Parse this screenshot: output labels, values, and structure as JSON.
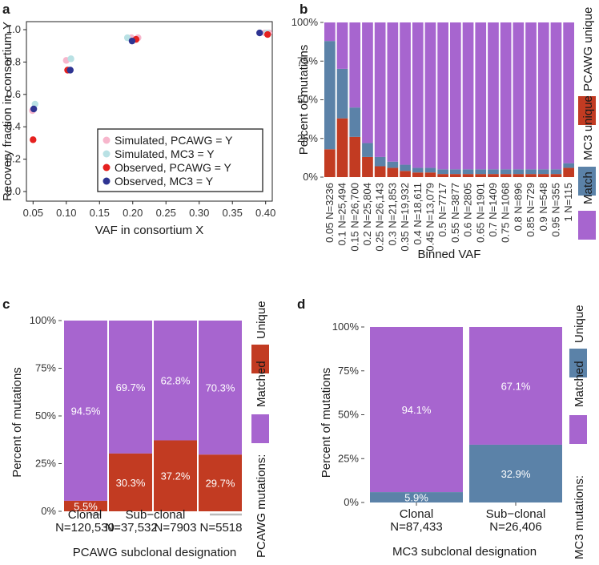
{
  "colors": {
    "purple": "#a765cf",
    "red": "#c23b22",
    "blue": "#5b82a8",
    "sim_pcawg": "#f7b6cc",
    "sim_mc3": "#b9e1e4",
    "obs_pcawg": "#e5211f",
    "obs_mc3": "#2e3492",
    "grid": "#e6e6e6"
  },
  "chart_data": [
    {
      "panel": "a",
      "type": "scatter",
      "xlabel": "VAF in consortium X",
      "ylabel": "Recovery fraction in consortium Y",
      "xlim": [
        0.04,
        0.41
      ],
      "ylim": [
        0.0,
        1.0
      ],
      "xticks": [
        "0.05",
        "0.10",
        "0.15",
        "0.20",
        "0.25",
        "0.30",
        "0.35",
        "0.40"
      ],
      "yticks": [
        "0.0",
        "0.2",
        "0.4",
        "0.6",
        "0.8",
        "1.0"
      ],
      "legend": [
        "Simulated, PCAWG = Y",
        "Simulated, MC3 = Y",
        "Observed, PCAWG = Y",
        "Observed, MC3 = Y"
      ],
      "series": [
        {
          "name": "Simulated, PCAWG = Y",
          "color_key": "sim_pcawg",
          "points": [
            [
              0.049,
              0.5
            ],
            [
              0.1,
              0.81
            ],
            [
              0.198,
              0.95
            ],
            [
              0.208,
              0.95
            ],
            [
              0.399,
              0.98
            ],
            [
              0.405,
              0.98
            ]
          ]
        },
        {
          "name": "Simulated, MC3 = Y",
          "color_key": "sim_mc3",
          "points": [
            [
              0.053,
              0.54
            ],
            [
              0.107,
              0.82
            ],
            [
              0.192,
              0.95
            ],
            [
              0.402,
              0.98
            ]
          ]
        },
        {
          "name": "Observed, PCAWG = Y",
          "color_key": "obs_pcawg",
          "points": [
            [
              0.05,
              0.32
            ],
            [
              0.102,
              0.75
            ],
            [
              0.205,
              0.94
            ],
            [
              0.403,
              0.97
            ]
          ]
        },
        {
          "name": "Observed, MC3 = Y",
          "color_key": "obs_mc3",
          "points": [
            [
              0.051,
              0.51
            ],
            [
              0.106,
              0.75
            ],
            [
              0.199,
              0.93
            ],
            [
              0.391,
              0.98
            ]
          ]
        }
      ]
    },
    {
      "panel": "b",
      "type": "bar",
      "stacked": true,
      "xlabel": "Binned VAF",
      "ylabel": "Percent of mutations",
      "yticks": [
        "0%",
        "25%",
        "50%",
        "75%",
        "100%"
      ],
      "categories": [
        "0.05 N=3236",
        "0.1 N=25,494",
        "0.15 N=26,700",
        "0.2 N=25,804",
        "0.25 N=26,143",
        "0.3 N=21,853",
        "0.35 N=19,932",
        "0.4 N=18,611",
        "0.45 N=13,079",
        "0.5 N=7717",
        "0.55 N=3877",
        "0.6 N=2805",
        "0.65 N=1901",
        "0.7 N=1409",
        "0.75 N=1068",
        "0.8 N=896",
        "0.85 N=729",
        "0.9 N=548",
        "0.95 N=355",
        "1 N=115"
      ],
      "series": [
        {
          "name": "PCAWG unique",
          "color_key": "red",
          "values": [
            18,
            38,
            26,
            13,
            7,
            6,
            4,
            3,
            3,
            2,
            2,
            2,
            2,
            2,
            2,
            2,
            2,
            2,
            2,
            6
          ]
        },
        {
          "name": "MC3 unique",
          "color_key": "blue",
          "values": [
            70,
            32,
            19,
            9,
            6,
            4,
            4,
            3,
            3,
            3,
            3,
            3,
            3,
            3,
            3,
            3,
            3,
            3,
            3,
            3
          ]
        },
        {
          "name": "Match",
          "color_key": "purple",
          "values": [
            12,
            30,
            55,
            78,
            87,
            90,
            92,
            94,
            94,
            95,
            95,
            95,
            95,
            95,
            95,
            95,
            95,
            95,
            95,
            91
          ]
        }
      ],
      "legend": [
        "PCAWG unique",
        "MC3 unique",
        "Match"
      ]
    },
    {
      "panel": "c",
      "type": "bar",
      "stacked": true,
      "xlabel": "PCAWG subclonal designation",
      "ylabel": "Percent of mutations",
      "yticks": [
        "0%",
        "25%",
        "50%",
        "75%",
        "100%"
      ],
      "categories": [
        "Clonal",
        "Sub−clonal",
        "",
        ""
      ],
      "counts": [
        "N=120,530",
        "N=37,532",
        "N=7903",
        "N=5518"
      ],
      "series": [
        {
          "name": "Unique",
          "color_key": "red",
          "values": [
            5.5,
            30.3,
            37.2,
            29.7
          ],
          "labels": [
            "5.5%",
            "30.3%",
            "37.2%",
            "29.7%"
          ]
        },
        {
          "name": "Matched",
          "color_key": "purple",
          "values": [
            94.5,
            69.7,
            62.8,
            70.3
          ],
          "labels": [
            "94.5%",
            "69.7%",
            "62.8%",
            "70.3%"
          ]
        }
      ],
      "legend_title": "PCAWG mutations:",
      "legend": [
        "Unique",
        "Matched"
      ]
    },
    {
      "panel": "d",
      "type": "bar",
      "stacked": true,
      "xlabel": "MC3 subclonal designation",
      "ylabel": "Percent of mutations",
      "yticks": [
        "0%",
        "25%",
        "50%",
        "75%",
        "100%"
      ],
      "categories": [
        "Clonal",
        "Sub−clonal"
      ],
      "counts": [
        "N=87,433",
        "N=26,406"
      ],
      "series": [
        {
          "name": "Unique",
          "color_key": "blue",
          "values": [
            5.9,
            32.9
          ],
          "labels": [
            "5.9%",
            "32.9%"
          ]
        },
        {
          "name": "Matched",
          "color_key": "purple",
          "values": [
            94.1,
            67.1
          ],
          "labels": [
            "94.1%",
            "67.1%"
          ]
        }
      ],
      "legend_title": "MC3 mutations:",
      "legend": [
        "Unique",
        "Matched"
      ]
    }
  ]
}
